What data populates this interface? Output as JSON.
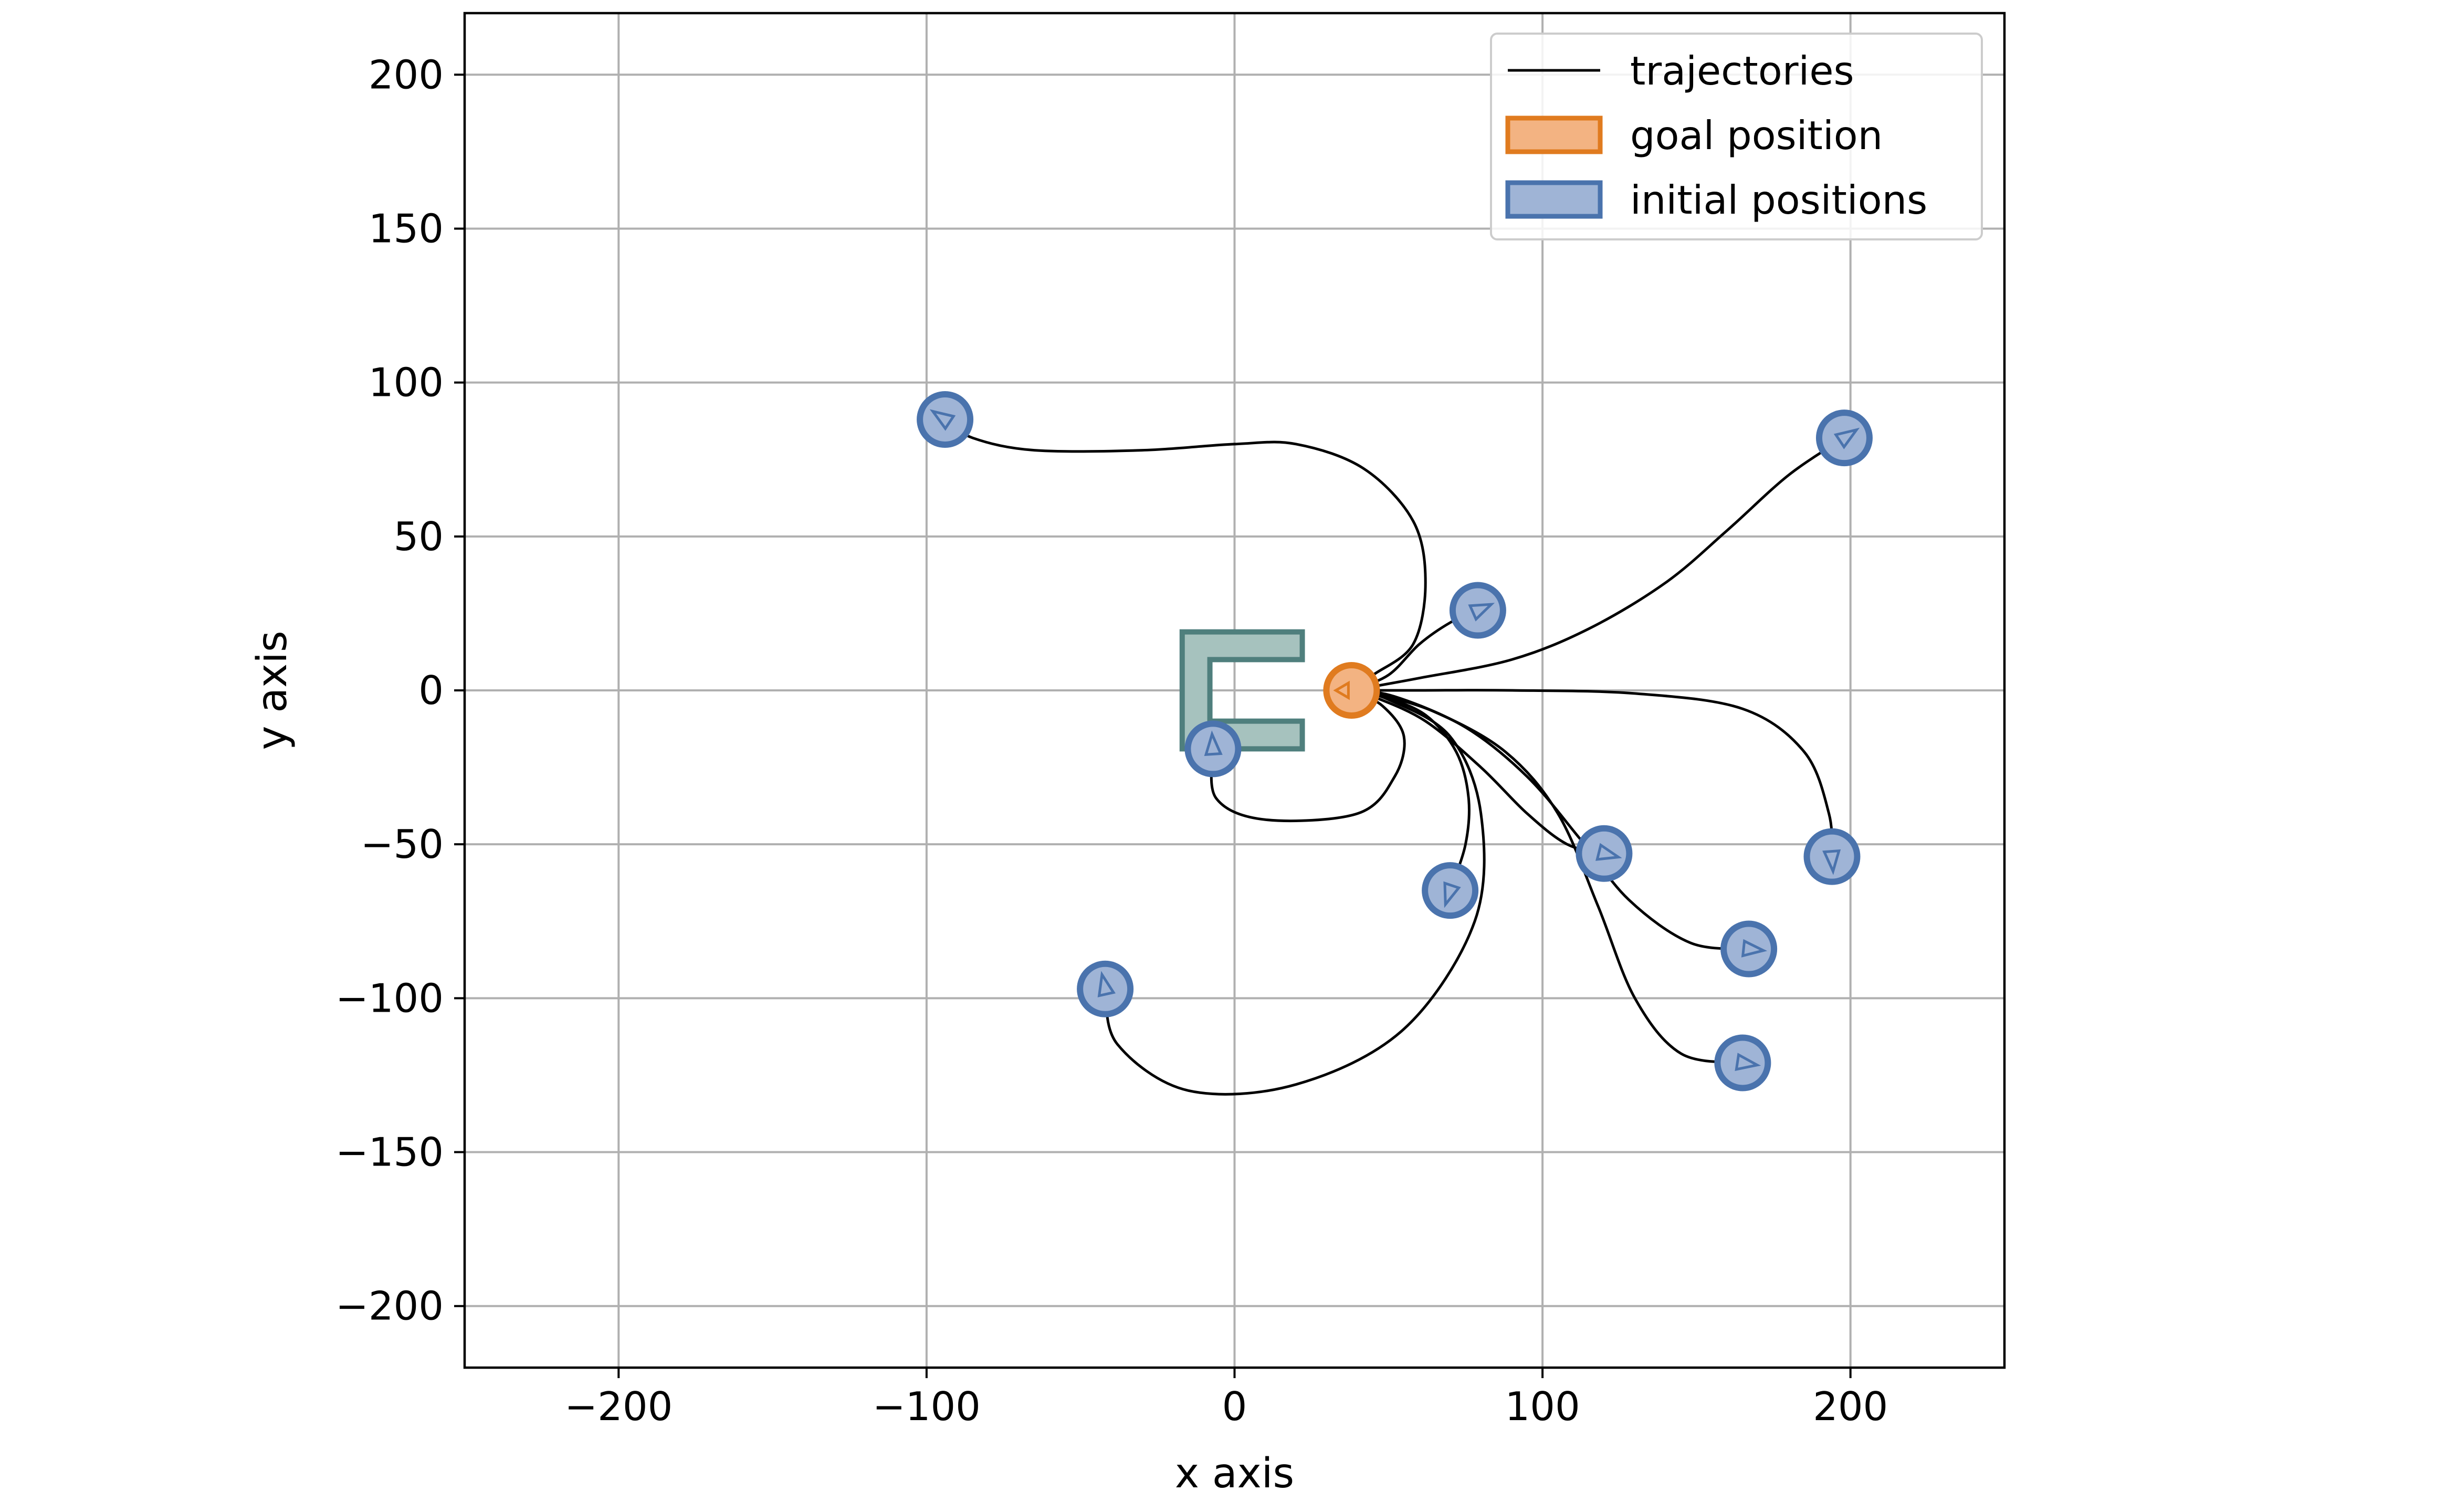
{
  "chart_data": {
    "type": "scatter",
    "title": "",
    "xlabel": "x axis",
    "ylabel": "y axis",
    "xlim": [
      -250,
      250
    ],
    "ylim": [
      -220,
      220
    ],
    "xticks": [
      -200,
      -100,
      0,
      100,
      200
    ],
    "yticks": [
      -200,
      -150,
      -100,
      -50,
      0,
      50,
      100,
      150,
      200
    ],
    "xtick_labels": [
      "−200",
      "−100",
      "0",
      "100",
      "200"
    ],
    "ytick_labels": [
      "−200",
      "−150",
      "−100",
      "−50",
      "0",
      "50",
      "100",
      "150",
      "200"
    ],
    "grid": true,
    "legend": {
      "position": "top-right",
      "entries": [
        {
          "label": "trajectories",
          "kind": "line",
          "color": "#000000"
        },
        {
          "label": "goal position",
          "kind": "patch",
          "face": "#f3b382",
          "edge": "#e07b1f"
        },
        {
          "label": "initial positions",
          "kind": "patch",
          "face": "#9fb4d6",
          "edge": "#4a73ad"
        }
      ]
    },
    "colors": {
      "goal_face": "#f3b382",
      "goal_edge": "#e07b1f",
      "initial_face": "#9fb4d6",
      "initial_edge": "#4a73ad",
      "obstacle_face": "#a6c2be",
      "obstacle_edge": "#4f7f7d",
      "trajectory": "#000000",
      "grid": "#b0b0b0"
    },
    "goal": {
      "x": 38,
      "y": 0
    },
    "obstacle": {
      "outline": [
        [
          -17,
          19
        ],
        [
          22,
          19
        ],
        [
          22,
          10
        ],
        [
          -8,
          10
        ],
        [
          -8,
          -10
        ],
        [
          22,
          -10
        ],
        [
          22,
          -19
        ],
        [
          -17,
          -19
        ]
      ]
    },
    "trajectories": [
      {
        "start": [
          -94,
          88
        ],
        "points": [
          [
            -94,
            88
          ],
          [
            -85,
            82
          ],
          [
            -65,
            78
          ],
          [
            -30,
            78
          ],
          [
            0,
            80
          ],
          [
            20,
            80
          ],
          [
            42,
            72
          ],
          [
            58,
            55
          ],
          [
            62,
            35
          ],
          [
            58,
            15
          ],
          [
            45,
            5
          ],
          [
            38,
            0
          ]
        ]
      },
      {
        "start": [
          79,
          26
        ],
        "points": [
          [
            79,
            26
          ],
          [
            70,
            22
          ],
          [
            60,
            15
          ],
          [
            50,
            5
          ],
          [
            38,
            0
          ]
        ]
      },
      {
        "start": [
          198,
          82
        ],
        "points": [
          [
            198,
            82
          ],
          [
            180,
            70
          ],
          [
            160,
            52
          ],
          [
            140,
            35
          ],
          [
            115,
            20
          ],
          [
            90,
            10
          ],
          [
            60,
            4
          ],
          [
            38,
            0
          ]
        ]
      },
      {
        "start": [
          194,
          -54
        ],
        "points": [
          [
            194,
            -54
          ],
          [
            193,
            -40
          ],
          [
            185,
            -20
          ],
          [
            165,
            -6
          ],
          [
            130,
            -1
          ],
          [
            90,
            0
          ],
          [
            60,
            0
          ],
          [
            38,
            0
          ]
        ]
      },
      {
        "start": [
          -7,
          -19
        ],
        "points": [
          [
            -7,
            -19
          ],
          [
            -6,
            -35
          ],
          [
            10,
            -42
          ],
          [
            40,
            -40
          ],
          [
            52,
            -28
          ],
          [
            55,
            -15
          ],
          [
            48,
            -5
          ],
          [
            38,
            0
          ]
        ]
      },
      {
        "start": [
          70,
          -65
        ],
        "points": [
          [
            70,
            -65
          ],
          [
            75,
            -50
          ],
          [
            76,
            -35
          ],
          [
            72,
            -20
          ],
          [
            62,
            -8
          ],
          [
            48,
            -2
          ],
          [
            38,
            0
          ]
        ]
      },
      {
        "start": [
          -42,
          -97
        ],
        "points": [
          [
            -42,
            -97
          ],
          [
            -38,
            -115
          ],
          [
            -15,
            -130
          ],
          [
            20,
            -128
          ],
          [
            55,
            -110
          ],
          [
            78,
            -75
          ],
          [
            80,
            -40
          ],
          [
            70,
            -15
          ],
          [
            50,
            -3
          ],
          [
            38,
            0
          ]
        ]
      },
      {
        "start": [
          120,
          -53
        ],
        "points": [
          [
            120,
            -53
          ],
          [
            108,
            -50
          ],
          [
            95,
            -40
          ],
          [
            80,
            -25
          ],
          [
            62,
            -10
          ],
          [
            45,
            -2
          ],
          [
            38,
            0
          ]
        ]
      },
      {
        "start": [
          167,
          -84
        ],
        "points": [
          [
            167,
            -84
          ],
          [
            148,
            -82
          ],
          [
            128,
            -68
          ],
          [
            112,
            -48
          ],
          [
            95,
            -28
          ],
          [
            75,
            -12
          ],
          [
            52,
            -2
          ],
          [
            38,
            0
          ]
        ]
      },
      {
        "start": [
          165,
          -121
        ],
        "points": [
          [
            165,
            -121
          ],
          [
            145,
            -118
          ],
          [
            130,
            -100
          ],
          [
            118,
            -70
          ],
          [
            105,
            -40
          ],
          [
            88,
            -20
          ],
          [
            65,
            -7
          ],
          [
            45,
            -1
          ],
          [
            38,
            0
          ]
        ]
      }
    ]
  }
}
